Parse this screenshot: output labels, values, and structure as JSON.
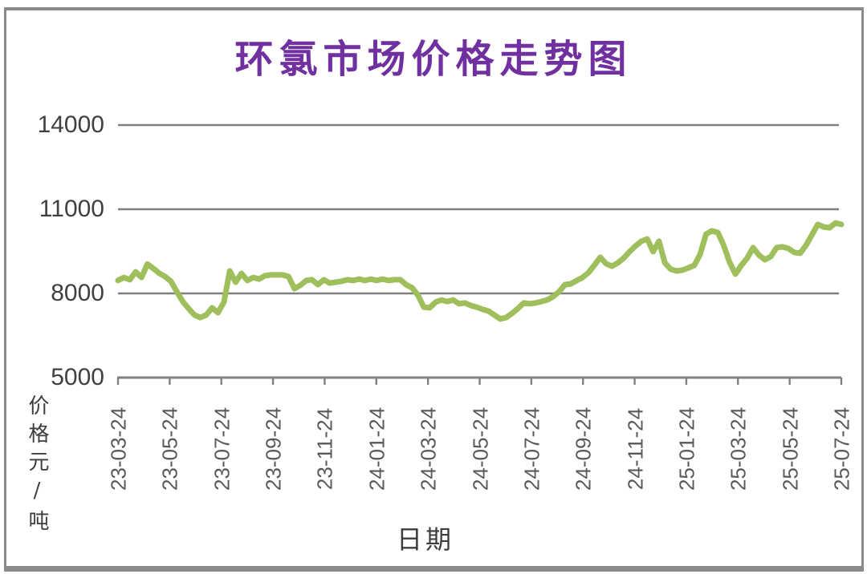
{
  "chart": {
    "title": "环氯市场价格走势图",
    "xlabel": "日期",
    "ylabel": "价格元/吨"
  },
  "chart_data": {
    "type": "line",
    "title": "环氯市场价格走势图",
    "xlabel": "日期",
    "ylabel": "价格元/吨",
    "ylim": [
      5000,
      14000
    ],
    "y_ticks": [
      5000,
      8000,
      11000,
      14000
    ],
    "x_ticklabels": [
      "23-03-24",
      "23-05-24",
      "23-07-24",
      "23-09-24",
      "23-11-24",
      "24-01-24",
      "24-03-24",
      "24-05-24",
      "24-07-24",
      "24-09-24",
      "24-11-24",
      "25-01-24",
      "25-03-24",
      "25-05-24",
      "25-07-24"
    ],
    "grid": true,
    "legend": "none",
    "line_color": "#9EBF5B",
    "axis_color": "#808080",
    "series": [
      {
        "name": "环氯市场价格",
        "values": [
          8460,
          8570,
          8490,
          8770,
          8570,
          9050,
          8890,
          8720,
          8600,
          8430,
          8060,
          7710,
          7460,
          7230,
          7140,
          7230,
          7490,
          7310,
          7690,
          8800,
          8400,
          8710,
          8460,
          8570,
          8510,
          8630,
          8660,
          8660,
          8660,
          8600,
          8170,
          8290,
          8460,
          8490,
          8310,
          8490,
          8370,
          8400,
          8430,
          8490,
          8460,
          8510,
          8460,
          8510,
          8460,
          8510,
          8460,
          8490,
          8490,
          8310,
          8200,
          7940,
          7510,
          7490,
          7690,
          7770,
          7710,
          7770,
          7630,
          7660,
          7570,
          7510,
          7430,
          7370,
          7230,
          7090,
          7140,
          7290,
          7460,
          7660,
          7630,
          7660,
          7710,
          7770,
          7890,
          8060,
          8310,
          8340,
          8460,
          8570,
          8740,
          9000,
          9290,
          9060,
          8970,
          9090,
          9260,
          9490,
          9690,
          9860,
          9940,
          9490,
          9860,
          9090,
          8860,
          8800,
          8830,
          8910,
          9000,
          9400,
          10110,
          10230,
          10170,
          9710,
          9110,
          8690,
          9000,
          9260,
          9630,
          9370,
          9200,
          9310,
          9630,
          9660,
          9600,
          9460,
          9430,
          9710,
          10090,
          10460,
          10370,
          10340,
          10510,
          10460
        ]
      }
    ]
  }
}
